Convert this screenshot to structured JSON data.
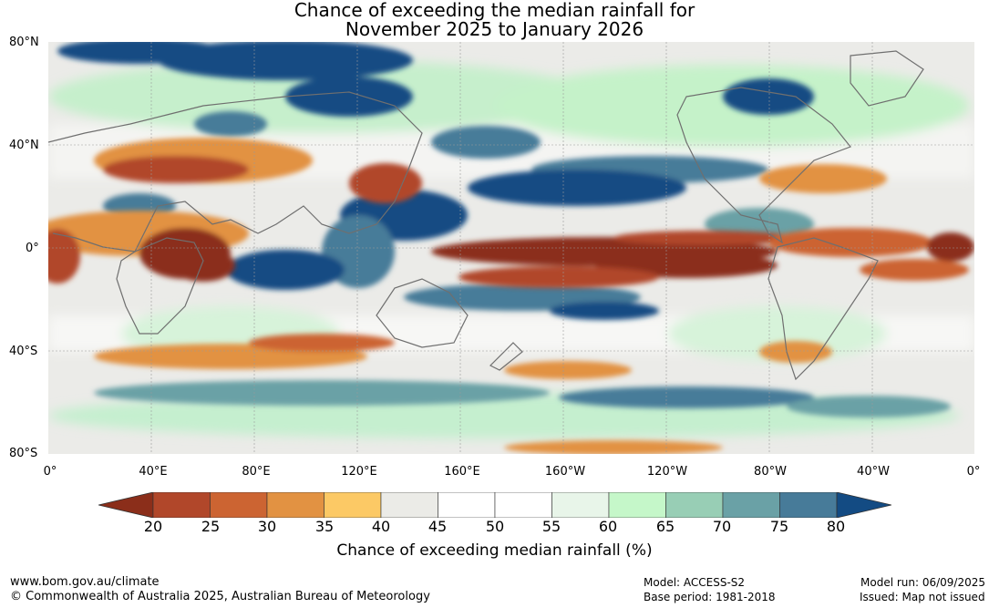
{
  "title": {
    "line1": "Chance of exceeding the median rainfall for",
    "line2": "November 2025 to January 2026"
  },
  "axes": {
    "lat_labels": [
      "80°N",
      "40°N",
      "0°",
      "40°S",
      "80°S"
    ],
    "lon_labels": [
      "0°",
      "40°E",
      "80°E",
      "120°E",
      "160°E",
      "160°W",
      "120°W",
      "80°W",
      "40°W",
      "0°"
    ]
  },
  "colorbar": {
    "ticks": [
      "20",
      "25",
      "30",
      "35",
      "40",
      "45",
      "50",
      "55",
      "60",
      "65",
      "70",
      "75",
      "80"
    ],
    "colors": [
      "#8b2e1a",
      "#b1472a",
      "#cc6432",
      "#e29242",
      "#fcc965",
      "#ebebe7",
      "#ffffff",
      "#ffffff",
      "#e8f5e9",
      "#c5f7c9",
      "#98ceb5",
      "#6aa1a6",
      "#477b99",
      "#134b83"
    ],
    "label": "Chance of exceeding median rainfall (%)"
  },
  "footer": {
    "url": "www.bom.gov.au/climate",
    "copyright": "© Commonwealth of Australia 2025, Australian Bureau of Meteorology",
    "model": "Model: ACCESS-S2",
    "base_period": "Base period: 1981-2018",
    "model_run": "Model run: 06/09/2025",
    "issued": "Issued: Map not issued"
  }
}
